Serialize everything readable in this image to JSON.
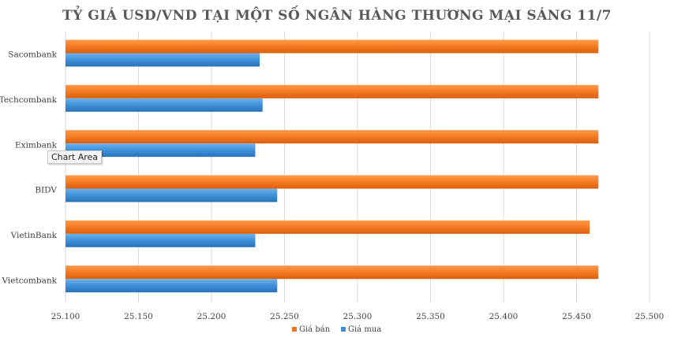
{
  "chart_data": {
    "type": "bar",
    "orientation": "horizontal",
    "title": "TỶ GIÁ USD/VND TẠI MỘT SỐ NGÂN HÀNG THƯƠNG MẠI SÁNG 11/7",
    "categories": [
      "Sacombank",
      "Techcombank",
      "Eximbank",
      "BIDV",
      "VietinBank",
      "Vietcombank"
    ],
    "series": [
      {
        "name": "Giá bán",
        "color": "#f27420",
        "values": [
          25465,
          25465,
          25465,
          25465,
          25459,
          25465
        ]
      },
      {
        "name": "Giá mua",
        "color": "#3d8fd9",
        "values": [
          25233,
          25235,
          25230,
          25245,
          25230,
          25245
        ]
      }
    ],
    "xlim": [
      25100,
      25500
    ],
    "x_ticks": [
      "25.100",
      "25.150",
      "25.200",
      "25.250",
      "25.300",
      "25.350",
      "25.400",
      "25.450",
      "25.500"
    ],
    "grid": true,
    "legend": "bottom"
  },
  "tooltip": {
    "text": "Chart Area"
  }
}
